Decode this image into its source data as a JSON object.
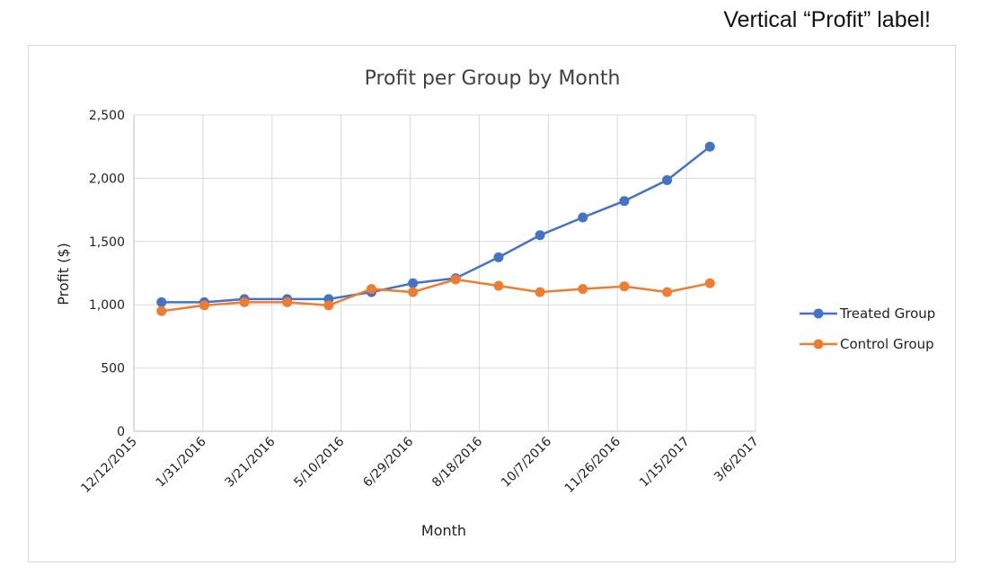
{
  "note": "Vertical “Profit” label!",
  "chart_data": {
    "type": "line",
    "title": "Profit per Group by Month",
    "xlabel": "Month",
    "ylabel": "Profit ($)",
    "x_axis_ticks": [
      "12/12/2015",
      "1/31/2016",
      "3/21/2016",
      "5/10/2016",
      "6/29/2016",
      "8/18/2016",
      "10/7/2016",
      "11/26/2016",
      "1/15/2017",
      "3/6/2017"
    ],
    "y_axis_ticks": [
      "0",
      "500",
      "1,000",
      "1,500",
      "2,000",
      "2,500"
    ],
    "xlim": [
      "2015-12-12",
      "2017-03-06"
    ],
    "ylim": [
      0,
      2500
    ],
    "grid": true,
    "legend_position": "right",
    "x": [
      "2016-01-01",
      "2016-02-01",
      "2016-03-01",
      "2016-04-01",
      "2016-05-01",
      "2016-06-01",
      "2016-07-01",
      "2016-08-01",
      "2016-09-01",
      "2016-10-01",
      "2016-11-01",
      "2016-12-01",
      "2017-01-01",
      "2017-02-01"
    ],
    "series": [
      {
        "name": "Treated Group",
        "color": "#4472c4",
        "values": [
          1020,
          1020,
          1045,
          1045,
          1045,
          1100,
          1170,
          1210,
          1375,
          1550,
          1690,
          1820,
          1985,
          2250
        ]
      },
      {
        "name": "Control Group",
        "color": "#ed7d31",
        "values": [
          950,
          995,
          1020,
          1020,
          995,
          1125,
          1100,
          1200,
          1150,
          1100,
          1125,
          1145,
          1100,
          1170
        ]
      }
    ]
  }
}
